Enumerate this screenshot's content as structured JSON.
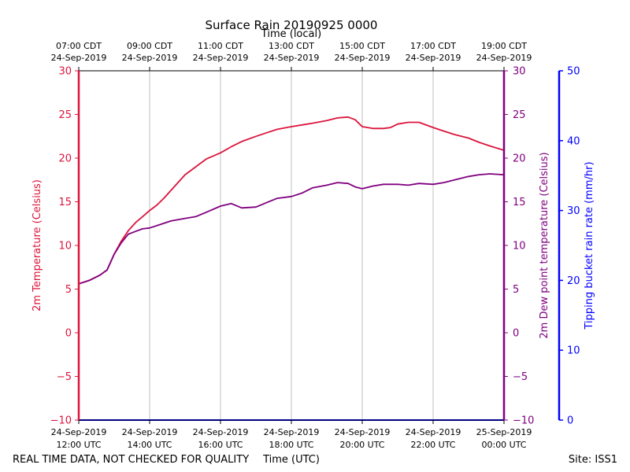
{
  "chart_data": {
    "type": "line",
    "title": "Surface Rain 20190925 0000",
    "top_axis_label": "Time (local)",
    "top_ticks": [
      [
        "07:00 CDT",
        "24-Sep-2019"
      ],
      [
        "09:00 CDT",
        "24-Sep-2019"
      ],
      [
        "11:00 CDT",
        "24-Sep-2019"
      ],
      [
        "13:00 CDT",
        "24-Sep-2019"
      ],
      [
        "15:00 CDT",
        "24-Sep-2019"
      ],
      [
        "17:00 CDT",
        "24-Sep-2019"
      ],
      [
        "19:00 CDT",
        "24-Sep-2019"
      ]
    ],
    "bottom_ticks": [
      [
        "24-Sep-2019",
        "12:00 UTC"
      ],
      [
        "24-Sep-2019",
        "14:00 UTC"
      ],
      [
        "24-Sep-2019",
        "16:00 UTC"
      ],
      [
        "24-Sep-2019",
        "18:00 UTC"
      ],
      [
        "24-Sep-2019",
        "20:00 UTC"
      ],
      [
        "24-Sep-2019",
        "22:00 UTC"
      ],
      [
        "25-Sep-2019",
        "00:00 UTC"
      ]
    ],
    "xlabel": "Time (UTC)",
    "xlim_hours_utc": [
      12,
      24
    ],
    "grid": "vertical",
    "ylabel_left": "2m Temperature (Celsius)",
    "ylabel_mid": "2m Dew point temperature (Celsius)",
    "ylabel_right": "Tipping bucket rain rate (mm/hr)",
    "ylim_temp": [
      -10,
      30
    ],
    "yticks_temp": [
      "−10",
      "−5",
      "0",
      "5",
      "10",
      "15",
      "20",
      "25",
      "30"
    ],
    "ylim_rain": [
      0,
      50
    ],
    "yticks_rain": [
      "0",
      "10",
      "20",
      "30",
      "40",
      "50"
    ],
    "colors": {
      "temperature": "#dc143c",
      "dewpoint": "#800080",
      "rain": "#0000ff"
    },
    "series": [
      {
        "name": "2m Temperature",
        "x": [
          12.0,
          12.3,
          12.6,
          12.8,
          13.0,
          13.2,
          13.4,
          13.6,
          13.8,
          14.0,
          14.2,
          14.4,
          14.6,
          14.8,
          15.0,
          15.3,
          15.6,
          16.0,
          16.3,
          16.6,
          17.0,
          17.3,
          17.6,
          18.0,
          18.3,
          18.6,
          19.0,
          19.3,
          19.6,
          19.8,
          20.0,
          20.3,
          20.6,
          20.8,
          21.0,
          21.3,
          21.6,
          22.0,
          22.3,
          22.6,
          23.0,
          23.3,
          23.6,
          24.0
        ],
        "values": [
          5.6,
          6.0,
          6.6,
          7.2,
          9.0,
          10.5,
          11.7,
          12.6,
          13.3,
          14.0,
          14.6,
          15.4,
          16.3,
          17.2,
          18.1,
          19.0,
          19.9,
          20.6,
          21.3,
          21.9,
          22.5,
          22.9,
          23.3,
          23.6,
          23.8,
          24.0,
          24.3,
          24.6,
          24.7,
          24.4,
          23.6,
          23.4,
          23.4,
          23.5,
          23.9,
          24.1,
          24.1,
          23.5,
          23.1,
          22.7,
          22.3,
          21.8,
          21.4,
          20.9
        ]
      },
      {
        "name": "2m Dew point temperature",
        "x": [
          12.0,
          12.3,
          12.6,
          12.8,
          13.0,
          13.2,
          13.4,
          13.6,
          13.8,
          14.0,
          14.3,
          14.6,
          15.0,
          15.3,
          15.6,
          16.0,
          16.3,
          16.6,
          17.0,
          17.3,
          17.6,
          18.0,
          18.3,
          18.6,
          19.0,
          19.3,
          19.6,
          19.8,
          20.0,
          20.3,
          20.6,
          21.0,
          21.3,
          21.6,
          22.0,
          22.3,
          22.6,
          23.0,
          23.3,
          23.6,
          24.0
        ],
        "values": [
          5.6,
          6.0,
          6.6,
          7.2,
          9.0,
          10.3,
          11.3,
          11.6,
          11.9,
          12.0,
          12.4,
          12.8,
          13.1,
          13.3,
          13.8,
          14.5,
          14.8,
          14.3,
          14.4,
          14.9,
          15.4,
          15.6,
          16.0,
          16.6,
          16.9,
          17.2,
          17.1,
          16.7,
          16.5,
          16.8,
          17.0,
          17.0,
          16.9,
          17.1,
          17.0,
          17.2,
          17.5,
          17.9,
          18.1,
          18.2,
          18.1
        ]
      },
      {
        "name": "Tipping bucket rain rate",
        "x": [
          12.0,
          24.0
        ],
        "values": [
          0,
          0
        ]
      }
    ],
    "footer_left": "REAL TIME DATA, NOT CHECKED FOR QUALITY",
    "footer_right": "Site: ISS1"
  }
}
